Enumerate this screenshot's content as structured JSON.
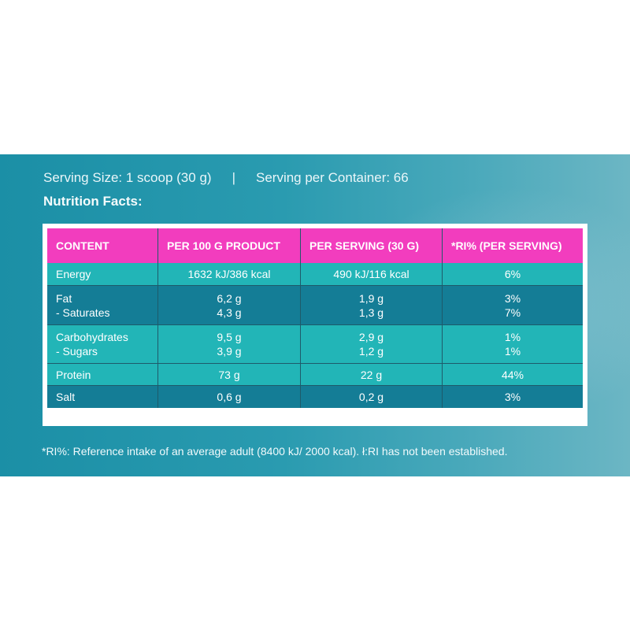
{
  "serving": {
    "size": "Serving Size: 1 scoop (30 g)",
    "separator": "|",
    "per_container": "Serving per Container: 66"
  },
  "facts_title": "Nutrition Facts:",
  "table": {
    "headers": [
      "CONTENT",
      "PER 100 G PRODUCT",
      "PER SERVING (30 G)",
      "*RI% (PER SERVING)"
    ],
    "rows": [
      {
        "name": [
          "Energy"
        ],
        "per100": [
          "1632 kJ/386 kcal"
        ],
        "perServing": [
          "490 kJ/116 kcal"
        ],
        "ri": [
          "6%"
        ]
      },
      {
        "name": [
          "Fat",
          "- Saturates"
        ],
        "per100": [
          "6,2 g",
          "4,3 g"
        ],
        "perServing": [
          "1,9 g",
          "1,3 g"
        ],
        "ri": [
          "3%",
          "7%"
        ]
      },
      {
        "name": [
          "Carbohydrates",
          "- Sugars"
        ],
        "per100": [
          "9,5 g",
          "3,9 g"
        ],
        "perServing": [
          "2,9 g",
          "1,2 g"
        ],
        "ri": [
          "1%",
          "1%"
        ]
      },
      {
        "name": [
          "Protein"
        ],
        "per100": [
          "73 g"
        ],
        "perServing": [
          "22 g"
        ],
        "ri": [
          "44%"
        ]
      },
      {
        "name": [
          "Salt"
        ],
        "per100": [
          "0,6 g"
        ],
        "perServing": [
          "0,2 g"
        ],
        "ri": [
          "3%"
        ]
      }
    ]
  },
  "footnote": "*RI%: Reference intake of an average adult (8400 kJ/ 2000 kcal). ł:RI has not been established.",
  "colors": {
    "header": "#f23dbe",
    "row_light": "#22b5b7",
    "row_dark": "#147d96",
    "banner": "#1b8fa6"
  }
}
